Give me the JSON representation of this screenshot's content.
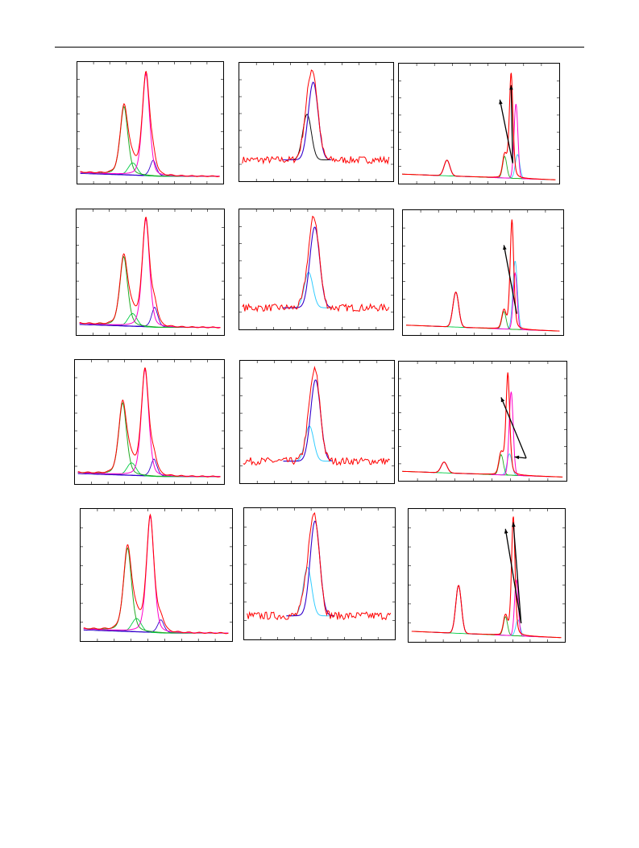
{
  "figure": {
    "colors": {
      "measured": "#ff0000",
      "fit_major": "#ff00cc",
      "fit_first": "#22aa22",
      "fit_minor": "#3300cc",
      "fit_shoulder": "#33ccff",
      "fit_narrow": "#111111",
      "baseline_green": "#00cc44",
      "arrow": "#000000"
    },
    "rows": [
      {
        "row": 1,
        "panels": [
          "xps-spectrum-a",
          "xps-spectrum-b",
          "xps-spectrum-c"
        ]
      },
      {
        "row": 2,
        "panels": [
          "xps-spectrum-a",
          "xps-spectrum-b",
          "xps-spectrum-c"
        ]
      },
      {
        "row": 3,
        "panels": [
          "xps-spectrum-a",
          "xps-spectrum-b",
          "xps-spectrum-c"
        ]
      },
      {
        "row": 4,
        "panels": [
          "xps-spectrum-a",
          "xps-spectrum-b",
          "xps-spectrum-c"
        ]
      }
    ]
  }
}
